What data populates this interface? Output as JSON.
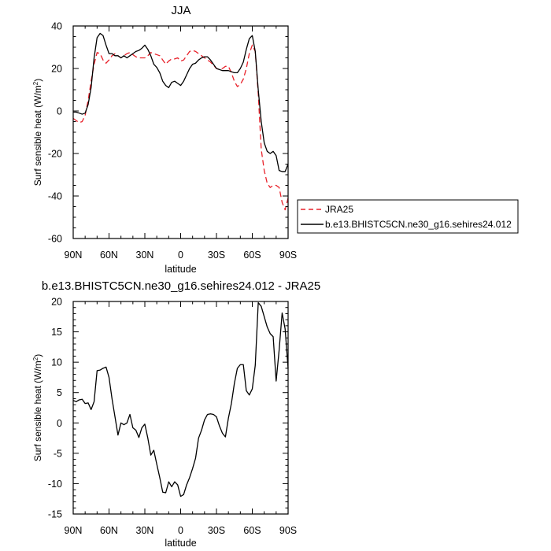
{
  "colors": {
    "jra25": "#e8212a",
    "model": "#000000",
    "axis": "#000000",
    "background": "#ffffff"
  },
  "chart_data": [
    {
      "type": "line",
      "title": "JJA",
      "xlabel": "latitude",
      "ylabel": "Surf sensible heat (W/m",
      "ylabel_sup": "2",
      "ylabel_close": ")",
      "xlim": [
        90,
        -90
      ],
      "ylim": [
        -60,
        40
      ],
      "x_ticks": [
        {
          "value": 90,
          "label": "90N"
        },
        {
          "value": 60,
          "label": "60N"
        },
        {
          "value": 30,
          "label": "30N"
        },
        {
          "value": 0,
          "label": "0"
        },
        {
          "value": -30,
          "label": "30S"
        },
        {
          "value": -60,
          "label": "60S"
        },
        {
          "value": -90,
          "label": "90S"
        }
      ],
      "y_ticks": [
        {
          "value": 40,
          "label": "40"
        },
        {
          "value": 20,
          "label": "20"
        },
        {
          "value": 0,
          "label": "0"
        },
        {
          "value": -20,
          "label": "-20"
        },
        {
          "value": -40,
          "label": "-40"
        },
        {
          "value": -60,
          "label": "-60"
        }
      ],
      "grid": false,
      "legend_placement": "right",
      "series": [
        {
          "name": "JRA25",
          "style": "dashed",
          "color": "#e8212a",
          "points": [
            [
              90,
              -3.5
            ],
            [
              87.5,
              -4.5
            ],
            [
              85,
              -5.5
            ],
            [
              82.5,
              -5
            ],
            [
              80,
              -2
            ],
            [
              77.5,
              5
            ],
            [
              75,
              14
            ],
            [
              72.5,
              22
            ],
            [
              70,
              27.5
            ],
            [
              67.5,
              27
            ],
            [
              65,
              24
            ],
            [
              62.5,
              22.5
            ],
            [
              60,
              24
            ],
            [
              57.5,
              26
            ],
            [
              55,
              27
            ],
            [
              52.5,
              26
            ],
            [
              50,
              25
            ],
            [
              47.5,
              26
            ],
            [
              45,
              27
            ],
            [
              42.5,
              27.5
            ],
            [
              40,
              26.5
            ],
            [
              37.5,
              25.5
            ],
            [
              35,
              25
            ],
            [
              32.5,
              25
            ],
            [
              30,
              25
            ],
            [
              27.5,
              26
            ],
            [
              25,
              27.5
            ],
            [
              22.5,
              27
            ],
            [
              20,
              26.5
            ],
            [
              17.5,
              26
            ],
            [
              15,
              24
            ],
            [
              12.5,
              22
            ],
            [
              10,
              23.5
            ],
            [
              7.5,
              24.5
            ],
            [
              5,
              24.5
            ],
            [
              2.5,
              25
            ],
            [
              0,
              23.5
            ],
            [
              -2.5,
              24
            ],
            [
              -5,
              26
            ],
            [
              -7.5,
              28
            ],
            [
              -10,
              28.5
            ],
            [
              -12.5,
              28
            ],
            [
              -15,
              27
            ],
            [
              -17.5,
              26
            ],
            [
              -20,
              25
            ],
            [
              -22.5,
              24
            ],
            [
              -25,
              23
            ],
            [
              -27.5,
              21.5
            ],
            [
              -30,
              20
            ],
            [
              -32.5,
              19.5
            ],
            [
              -35,
              20
            ],
            [
              -37.5,
              21
            ],
            [
              -40,
              21
            ],
            [
              -42.5,
              18
            ],
            [
              -45,
              14
            ],
            [
              -47.5,
              11.5
            ],
            [
              -50,
              12.5
            ],
            [
              -52.5,
              15
            ],
            [
              -55,
              20
            ],
            [
              -57.5,
              27
            ],
            [
              -60,
              31
            ],
            [
              -62.5,
              28
            ],
            [
              -65,
              8
            ],
            [
              -67.5,
              -18
            ],
            [
              -70,
              -28
            ],
            [
              -72.5,
              -34
            ],
            [
              -75,
              -36
            ],
            [
              -77.5,
              -35
            ],
            [
              -80,
              -35
            ],
            [
              -82.5,
              -36
            ],
            [
              -85,
              -43
            ],
            [
              -87.5,
              -46.5
            ],
            [
              -90,
              -41
            ]
          ]
        },
        {
          "name": "b.e13.BHISTC5CN.ne30_g16.sehires24.012",
          "style": "solid",
          "color": "#000000",
          "points": [
            [
              90,
              -0.5
            ],
            [
              87.5,
              -0.5
            ],
            [
              85,
              -1
            ],
            [
              82.5,
              -1.5
            ],
            [
              80,
              -1
            ],
            [
              77.5,
              3
            ],
            [
              75,
              11
            ],
            [
              72.5,
              25
            ],
            [
              70,
              34.5
            ],
            [
              67.5,
              36.5
            ],
            [
              65,
              35.5
            ],
            [
              62.5,
              31
            ],
            [
              60,
              27
            ],
            [
              57.5,
              27
            ],
            [
              55,
              26
            ],
            [
              52.5,
              26
            ],
            [
              50,
              25
            ],
            [
              47.5,
              26
            ],
            [
              45,
              25
            ],
            [
              42.5,
              26
            ],
            [
              40,
              27
            ],
            [
              37.5,
              28
            ],
            [
              35,
              28.5
            ],
            [
              32.5,
              29.5
            ],
            [
              30,
              31
            ],
            [
              27.5,
              29
            ],
            [
              25,
              26
            ],
            [
              22.5,
              22
            ],
            [
              20,
              20.5
            ],
            [
              17.5,
              18
            ],
            [
              15,
              14
            ],
            [
              12.5,
              12
            ],
            [
              10,
              11
            ],
            [
              7.5,
              13.5
            ],
            [
              5,
              14
            ],
            [
              2.5,
              13
            ],
            [
              0,
              12
            ],
            [
              -2.5,
              14
            ],
            [
              -5,
              17
            ],
            [
              -7.5,
              20
            ],
            [
              -10,
              22
            ],
            [
              -12.5,
              22.5
            ],
            [
              -15,
              24
            ],
            [
              -17.5,
              25
            ],
            [
              -20,
              25.5
            ],
            [
              -22.5,
              25.5
            ],
            [
              -25,
              24
            ],
            [
              -27.5,
              22
            ],
            [
              -30,
              20
            ],
            [
              -32.5,
              19.5
            ],
            [
              -35,
              19
            ],
            [
              -37.5,
              19
            ],
            [
              -40,
              19
            ],
            [
              -42.5,
              18.5
            ],
            [
              -45,
              18
            ],
            [
              -47.5,
              18
            ],
            [
              -50,
              20
            ],
            [
              -52.5,
              23
            ],
            [
              -55,
              29
            ],
            [
              -57.5,
              34
            ],
            [
              -60,
              35.5
            ],
            [
              -62.5,
              28
            ],
            [
              -65,
              10
            ],
            [
              -67.5,
              -5
            ],
            [
              -70,
              -15
            ],
            [
              -72.5,
              -19
            ],
            [
              -75,
              -20
            ],
            [
              -77.5,
              -19
            ],
            [
              -80,
              -21
            ],
            [
              -82.5,
              -28
            ],
            [
              -85,
              -28.5
            ],
            [
              -87.5,
              -28.5
            ],
            [
              -90,
              -25
            ]
          ]
        }
      ]
    },
    {
      "type": "line",
      "title": "b.e13.BHISTC5CN.ne30_g16.sehires24.012 - JRA25",
      "xlabel": "latitude",
      "ylabel": "Surf sensible heat (W/m",
      "ylabel_sup": "2",
      "ylabel_close": ")",
      "xlim": [
        90,
        -90
      ],
      "ylim": [
        -15,
        20
      ],
      "x_ticks": [
        {
          "value": 90,
          "label": "90N"
        },
        {
          "value": 60,
          "label": "60N"
        },
        {
          "value": 30,
          "label": "30N"
        },
        {
          "value": 0,
          "label": "0"
        },
        {
          "value": -30,
          "label": "30S"
        },
        {
          "value": -60,
          "label": "60S"
        },
        {
          "value": -90,
          "label": "90S"
        }
      ],
      "y_ticks": [
        {
          "value": 20,
          "label": "20"
        },
        {
          "value": 15,
          "label": "15"
        },
        {
          "value": 10,
          "label": "10"
        },
        {
          "value": 5,
          "label": "5"
        },
        {
          "value": 0,
          "label": "0"
        },
        {
          "value": -5,
          "label": "-5"
        },
        {
          "value": -10,
          "label": "-10"
        },
        {
          "value": -15,
          "label": "-15"
        }
      ],
      "grid": false,
      "series": [
        {
          "style": "solid",
          "color": "#000000",
          "points": [
            [
              90,
              3.7
            ],
            [
              87.5,
              3.5
            ],
            [
              85,
              3.8
            ],
            [
              82.5,
              3.9
            ],
            [
              80,
              3.2
            ],
            [
              77.5,
              3.3
            ],
            [
              75,
              2.2
            ],
            [
              72.5,
              3.5
            ],
            [
              70,
              8.6
            ],
            [
              67.5,
              8.7
            ],
            [
              65,
              9.0
            ],
            [
              62.5,
              9.2
            ],
            [
              60,
              7.5
            ],
            [
              57.5,
              4.0
            ],
            [
              55,
              1.0
            ],
            [
              52.5,
              -2.0
            ],
            [
              50,
              0
            ],
            [
              47.5,
              -0.3
            ],
            [
              45,
              0
            ],
            [
              42.5,
              1.4
            ],
            [
              40,
              -0.8
            ],
            [
              37.5,
              -1.2
            ],
            [
              35,
              -2.4
            ],
            [
              32.5,
              -0.8
            ],
            [
              30,
              -0.2
            ],
            [
              27.5,
              -2.5
            ],
            [
              25,
              -5.3
            ],
            [
              22.5,
              -4.5
            ],
            [
              20,
              -6.8
            ],
            [
              17.5,
              -9.0
            ],
            [
              15,
              -11.4
            ],
            [
              12.5,
              -11.5
            ],
            [
              10,
              -9.7
            ],
            [
              7.5,
              -10.5
            ],
            [
              5,
              -9.7
            ],
            [
              2.5,
              -10.2
            ],
            [
              0,
              -12.1
            ],
            [
              -2.5,
              -11.8
            ],
            [
              -5,
              -10.2
            ],
            [
              -7.5,
              -9.0
            ],
            [
              -10,
              -7.5
            ],
            [
              -12.5,
              -5.8
            ],
            [
              -15,
              -2.5
            ],
            [
              -17.5,
              -1.2
            ],
            [
              -20,
              0.5
            ],
            [
              -22.5,
              1.4
            ],
            [
              -25,
              1.5
            ],
            [
              -27.5,
              1.4
            ],
            [
              -30,
              1.0
            ],
            [
              -32.5,
              -0.5
            ],
            [
              -35,
              -1.7
            ],
            [
              -37.5,
              -2.3
            ],
            [
              -40,
              0.8
            ],
            [
              -42.5,
              3.2
            ],
            [
              -45,
              6.5
            ],
            [
              -47.5,
              9.0
            ],
            [
              -50,
              9.6
            ],
            [
              -52.5,
              9.6
            ],
            [
              -55,
              5.3
            ],
            [
              -57.5,
              4.6
            ],
            [
              -60,
              5.6
            ],
            [
              -62.5,
              9.5
            ],
            [
              -65,
              19.8
            ],
            [
              -67.5,
              19.2
            ],
            [
              -70,
              17.5
            ],
            [
              -72.5,
              15.8
            ],
            [
              -75,
              14.7
            ],
            [
              -77.5,
              14.2
            ],
            [
              -80,
              6.9
            ],
            [
              -82.5,
              12.0
            ],
            [
              -85,
              18.1
            ],
            [
              -87.5,
              15.5
            ],
            [
              -90,
              9.0
            ]
          ]
        }
      ]
    }
  ]
}
